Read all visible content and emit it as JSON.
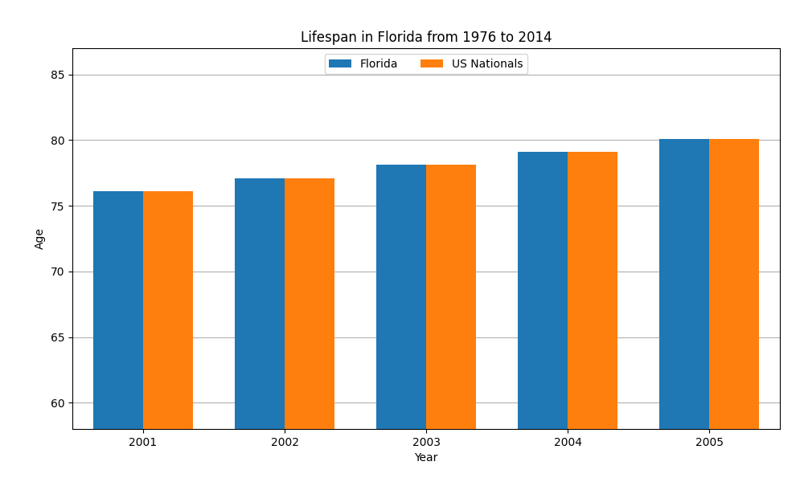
{
  "chart_data": {
    "type": "bar",
    "title": "Lifespan in Florida from 1976 to 2014",
    "x_label": "Year",
    "y_label": "Age",
    "categories": [
      "2001",
      "2002",
      "2003",
      "2004",
      "2005"
    ],
    "series": [
      {
        "name": "Florida",
        "values": [
          76.1,
          77.1,
          78.1,
          79.1,
          80.1
        ]
      },
      {
        "name": "US Nationals",
        "values": [
          76.1,
          77.1,
          78.1,
          79.1,
          80.1
        ]
      }
    ],
    "ylim": [
      58,
      87
    ],
    "yticks": [
      60,
      65,
      70,
      75,
      80,
      85
    ],
    "grid": true,
    "legend": "upper center"
  }
}
